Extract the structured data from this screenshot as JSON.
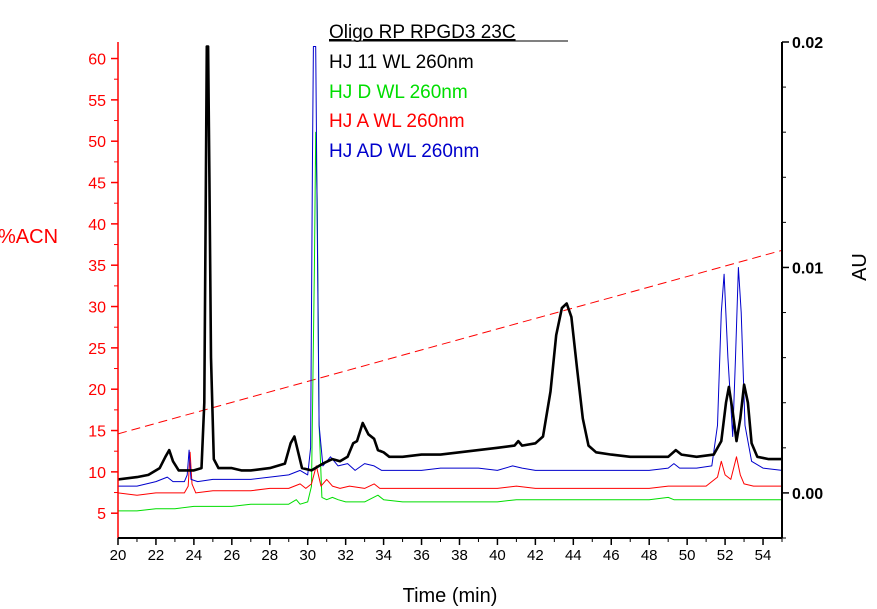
{
  "chart_data": {
    "type": "line",
    "title": "Oligo RP RPGD3 23C",
    "xlabel": "Time (min)",
    "ylabel_left": "%ACN",
    "ylabel_right": "AU",
    "xlim": [
      20,
      55
    ],
    "ylim_left": [
      2,
      62
    ],
    "ylim_right": [
      -0.002,
      0.02
    ],
    "x_ticks": [
      "20",
      "22",
      "24",
      "26",
      "28",
      "30",
      "32",
      "34",
      "36",
      "38",
      "40",
      "42",
      "44",
      "46",
      "48",
      "50",
      "52",
      "54"
    ],
    "y_left_ticks": [
      "5",
      "10",
      "15",
      "20",
      "25",
      "30",
      "35",
      "40",
      "45",
      "50",
      "55",
      "60"
    ],
    "y_right_ticks": [
      "0.00",
      "0.01",
      "0.02"
    ],
    "colors": {
      "left_axis": "#ff0000",
      "right_axis": "#000000",
      "gradient": "#ff0000"
    },
    "gradient": {
      "axis": "left",
      "style": "dashed",
      "color": "#ff0000",
      "points": [
        [
          20,
          14.6
        ],
        [
          55,
          36.8
        ]
      ]
    },
    "series": [
      {
        "name": "HJ 11 WL 260nm",
        "color": "#000000",
        "width": 2.6,
        "axis": "right",
        "points": [
          [
            20,
            0.0006
          ],
          [
            21,
            0.0007
          ],
          [
            21.6,
            0.0008
          ],
          [
            22.2,
            0.0011
          ],
          [
            22.5,
            0.0016
          ],
          [
            22.7,
            0.0019
          ],
          [
            22.9,
            0.0014
          ],
          [
            23.2,
            0.001
          ],
          [
            24.0,
            0.001
          ],
          [
            24.4,
            0.0011
          ],
          [
            24.55,
            0.004
          ],
          [
            24.62,
            0.012
          ],
          [
            24.68,
            0.0198
          ],
          [
            24.75,
            0.0198
          ],
          [
            24.82,
            0.014
          ],
          [
            24.9,
            0.006
          ],
          [
            25.05,
            0.0015
          ],
          [
            25.3,
            0.0011
          ],
          [
            26,
            0.0011
          ],
          [
            26.5,
            0.001
          ],
          [
            27,
            0.001
          ],
          [
            28,
            0.0011
          ],
          [
            28.8,
            0.0013
          ],
          [
            29.1,
            0.0022
          ],
          [
            29.3,
            0.0025
          ],
          [
            29.5,
            0.0018
          ],
          [
            29.7,
            0.0011
          ],
          [
            30.2,
            0.001
          ],
          [
            30.8,
            0.0013
          ],
          [
            31.3,
            0.0015
          ],
          [
            31.7,
            0.0014
          ],
          [
            32.1,
            0.0016
          ],
          [
            32.4,
            0.0022
          ],
          [
            32.6,
            0.0023
          ],
          [
            32.9,
            0.0031
          ],
          [
            33.2,
            0.0026
          ],
          [
            33.5,
            0.0024
          ],
          [
            33.7,
            0.0019
          ],
          [
            34.0,
            0.0018
          ],
          [
            34.3,
            0.0016
          ],
          [
            35,
            0.0016
          ],
          [
            36,
            0.0017
          ],
          [
            37,
            0.0017
          ],
          [
            38,
            0.0018
          ],
          [
            39,
            0.0019
          ],
          [
            40,
            0.002
          ],
          [
            40.9,
            0.0021
          ],
          [
            41.1,
            0.0023
          ],
          [
            41.3,
            0.0021
          ],
          [
            42.0,
            0.0022
          ],
          [
            42.4,
            0.0025
          ],
          [
            42.8,
            0.0045
          ],
          [
            43.1,
            0.007
          ],
          [
            43.4,
            0.0082
          ],
          [
            43.65,
            0.0084
          ],
          [
            43.9,
            0.0078
          ],
          [
            44.2,
            0.0055
          ],
          [
            44.5,
            0.0033
          ],
          [
            44.8,
            0.0021
          ],
          [
            45.2,
            0.0018
          ],
          [
            46,
            0.0017
          ],
          [
            47,
            0.0016
          ],
          [
            48,
            0.0016
          ],
          [
            49,
            0.0016
          ],
          [
            49.4,
            0.0019
          ],
          [
            49.7,
            0.0017
          ],
          [
            50.5,
            0.0016
          ],
          [
            51.4,
            0.0017
          ],
          [
            51.8,
            0.0023
          ],
          [
            52.05,
            0.004
          ],
          [
            52.2,
            0.0047
          ],
          [
            52.4,
            0.0036
          ],
          [
            52.6,
            0.0023
          ],
          [
            52.8,
            0.0033
          ],
          [
            53.0,
            0.0048
          ],
          [
            53.2,
            0.004
          ],
          [
            53.4,
            0.0022
          ],
          [
            53.7,
            0.0016
          ],
          [
            54.3,
            0.0015
          ],
          [
            55,
            0.0015
          ]
        ]
      },
      {
        "name": "HJ D WL 260nm",
        "color": "#00dd00",
        "width": 1,
        "axis": "right",
        "points": [
          [
            20,
            -0.0008
          ],
          [
            21,
            -0.0008
          ],
          [
            22,
            -0.0007
          ],
          [
            23,
            -0.0007
          ],
          [
            24,
            -0.0006
          ],
          [
            25,
            -0.0006
          ],
          [
            26,
            -0.0006
          ],
          [
            27,
            -0.0005
          ],
          [
            28,
            -0.0005
          ],
          [
            29,
            -0.0005
          ],
          [
            29.4,
            -0.0003
          ],
          [
            29.6,
            -0.0005
          ],
          [
            30.0,
            -0.0004
          ],
          [
            30.2,
            0.0003
          ],
          [
            30.35,
            0.01
          ],
          [
            30.42,
            0.016
          ],
          [
            30.5,
            0.013
          ],
          [
            30.6,
            0.003
          ],
          [
            30.75,
            -0.0002
          ],
          [
            31.0,
            -0.0003
          ],
          [
            31.3,
            -0.0002
          ],
          [
            31.6,
            -0.0003
          ],
          [
            32,
            -0.0004
          ],
          [
            33,
            -0.0004
          ],
          [
            33.7,
            -0.0001
          ],
          [
            34,
            -0.0003
          ],
          [
            35,
            -0.0004
          ],
          [
            36,
            -0.0004
          ],
          [
            37,
            -0.0004
          ],
          [
            38,
            -0.0004
          ],
          [
            39,
            -0.0004
          ],
          [
            40,
            -0.0004
          ],
          [
            41,
            -0.0003
          ],
          [
            42,
            -0.0003
          ],
          [
            43,
            -0.0003
          ],
          [
            44,
            -0.0003
          ],
          [
            45,
            -0.0003
          ],
          [
            46,
            -0.0003
          ],
          [
            47,
            -0.0003
          ],
          [
            48,
            -0.0003
          ],
          [
            49,
            -0.0002
          ],
          [
            49.3,
            -0.0003
          ],
          [
            50,
            -0.0003
          ],
          [
            51,
            -0.0003
          ],
          [
            52,
            -0.0003
          ],
          [
            53,
            -0.0003
          ],
          [
            54,
            -0.0003
          ],
          [
            55,
            -0.0003
          ]
        ]
      },
      {
        "name": "HJ A WL 260nm",
        "color": "#ff0000",
        "width": 1,
        "axis": "right",
        "points": [
          [
            20,
            0.0
          ],
          [
            21,
            -0.0001
          ],
          [
            22,
            0.0
          ],
          [
            23,
            0.0
          ],
          [
            23.5,
            0.0
          ],
          [
            23.7,
            0.0003
          ],
          [
            23.8,
            0.0018
          ],
          [
            23.9,
            0.0004
          ],
          [
            24.1,
            0.0
          ],
          [
            25,
            0.0001
          ],
          [
            26,
            0.0001
          ],
          [
            27,
            0.0001
          ],
          [
            28,
            0.0002
          ],
          [
            29,
            0.0002
          ],
          [
            29.6,
            0.0004
          ],
          [
            29.9,
            0.0002
          ],
          [
            30.2,
            0.0004
          ],
          [
            30.45,
            0.0012
          ],
          [
            30.7,
            0.0003
          ],
          [
            31.0,
            0.0006
          ],
          [
            31.3,
            0.0003
          ],
          [
            31.7,
            0.0002
          ],
          [
            32.2,
            0.0003
          ],
          [
            33,
            0.0002
          ],
          [
            33.5,
            0.0004
          ],
          [
            33.8,
            0.0002
          ],
          [
            35,
            0.0002
          ],
          [
            36,
            0.0002
          ],
          [
            37,
            0.0002
          ],
          [
            38,
            0.0002
          ],
          [
            39,
            0.0002
          ],
          [
            40,
            0.0002
          ],
          [
            41,
            0.0003
          ],
          [
            42,
            0.0002
          ],
          [
            43,
            0.0002
          ],
          [
            44,
            0.0002
          ],
          [
            45,
            0.0002
          ],
          [
            46,
            0.0002
          ],
          [
            47,
            0.0002
          ],
          [
            48,
            0.0002
          ],
          [
            49,
            0.0003
          ],
          [
            50,
            0.0003
          ],
          [
            51,
            0.0003
          ],
          [
            51.6,
            0.0007
          ],
          [
            51.8,
            0.0014
          ],
          [
            52.0,
            0.0008
          ],
          [
            52.3,
            0.0006
          ],
          [
            52.6,
            0.0016
          ],
          [
            52.8,
            0.0008
          ],
          [
            53.0,
            0.0004
          ],
          [
            53.5,
            0.0003
          ],
          [
            54,
            0.0003
          ],
          [
            55,
            0.0003
          ]
        ]
      },
      {
        "name": "HJ AD WL 260nm",
        "color": "#0000cc",
        "width": 1,
        "axis": "right",
        "points": [
          [
            20,
            0.0003
          ],
          [
            21,
            0.0003
          ],
          [
            22,
            0.0005
          ],
          [
            22.6,
            0.0007
          ],
          [
            22.9,
            0.0005
          ],
          [
            23.5,
            0.0005
          ],
          [
            23.65,
            0.0008
          ],
          [
            23.75,
            0.0019
          ],
          [
            23.85,
            0.0006
          ],
          [
            24.2,
            0.0005
          ],
          [
            25,
            0.0006
          ],
          [
            26,
            0.0006
          ],
          [
            27,
            0.0006
          ],
          [
            28,
            0.0007
          ],
          [
            29,
            0.0008
          ],
          [
            29.6,
            0.001
          ],
          [
            30.0,
            0.0008
          ],
          [
            30.15,
            0.002
          ],
          [
            30.25,
            0.015
          ],
          [
            30.3,
            0.0198
          ],
          [
            30.42,
            0.0198
          ],
          [
            30.5,
            0.012
          ],
          [
            30.6,
            0.003
          ],
          [
            30.8,
            0.0012
          ],
          [
            31.2,
            0.0016
          ],
          [
            31.6,
            0.0012
          ],
          [
            32.1,
            0.0013
          ],
          [
            32.5,
            0.001
          ],
          [
            33.0,
            0.0013
          ],
          [
            33.5,
            0.0012
          ],
          [
            33.9,
            0.001
          ],
          [
            35,
            0.001
          ],
          [
            36,
            0.001
          ],
          [
            37,
            0.0011
          ],
          [
            38,
            0.0011
          ],
          [
            39,
            0.0011
          ],
          [
            40,
            0.001
          ],
          [
            40.8,
            0.0012
          ],
          [
            41.3,
            0.0011
          ],
          [
            42,
            0.001
          ],
          [
            43,
            0.001
          ],
          [
            44,
            0.001
          ],
          [
            45,
            0.001
          ],
          [
            46,
            0.001
          ],
          [
            47,
            0.001
          ],
          [
            48,
            0.001
          ],
          [
            49,
            0.0011
          ],
          [
            49.3,
            0.0013
          ],
          [
            49.6,
            0.0011
          ],
          [
            50.5,
            0.0011
          ],
          [
            51.3,
            0.0012
          ],
          [
            51.6,
            0.003
          ],
          [
            51.8,
            0.008
          ],
          [
            51.95,
            0.0097
          ],
          [
            52.15,
            0.006
          ],
          [
            52.4,
            0.0025
          ],
          [
            52.55,
            0.006
          ],
          [
            52.7,
            0.01
          ],
          [
            52.85,
            0.008
          ],
          [
            53.05,
            0.003
          ],
          [
            53.4,
            0.0014
          ],
          [
            54,
            0.0011
          ],
          [
            55,
            0.001
          ]
        ]
      }
    ]
  }
}
